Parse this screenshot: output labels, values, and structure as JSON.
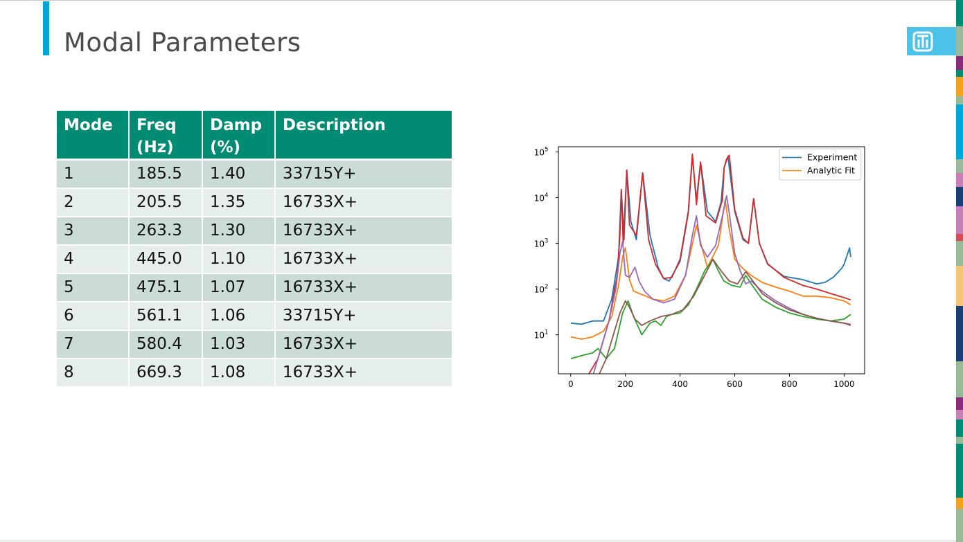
{
  "slide": {
    "title": "Modal Parameters",
    "accent_color": "#00a6d6",
    "logo_icon": "sandia-thunderbird-icon",
    "logo_color": "#4cc2ea"
  },
  "table": {
    "header_color": "#008b72",
    "headers": [
      [
        "Mode"
      ],
      [
        "Freq",
        "(Hz)"
      ],
      [
        "Damp",
        "(%)"
      ],
      [
        "Description"
      ]
    ],
    "rows": [
      [
        "1",
        "185.5",
        "1.40",
        "33715Y+"
      ],
      [
        "2",
        "205.5",
        "1.35",
        "16733X+"
      ],
      [
        "3",
        "263.3",
        "1.30",
        "16733X+"
      ],
      [
        "4",
        "445.0",
        "1.10",
        "16733X+"
      ],
      [
        "5",
        "475.1",
        "1.07",
        "16733X+"
      ],
      [
        "6",
        "561.1",
        "1.06",
        "33715Y+"
      ],
      [
        "7",
        "580.4",
        "1.03",
        "16733X+"
      ],
      [
        "8",
        "669.3",
        "1.08",
        "16733X+"
      ]
    ]
  },
  "chart_data": {
    "type": "line",
    "title": "",
    "xlabel": "",
    "ylabel": "",
    "xlim": [
      -45,
      1075
    ],
    "ylim": [
      1.4,
      130000
    ],
    "yscale": "log",
    "xticks": [
      "0",
      "200",
      "400",
      "600",
      "800",
      "1000"
    ],
    "xtick_values": [
      0,
      200,
      400,
      600,
      800,
      1000
    ],
    "ytick_values": [
      10,
      100,
      1000,
      10000,
      100000
    ],
    "yticks": [
      "10",
      "10",
      "10",
      "10",
      "10"
    ],
    "ytick_exponents": [
      "1",
      "2",
      "3",
      "4",
      "5"
    ],
    "legend_position": "top-right",
    "legend": [
      "Experiment",
      "Analytic Fit"
    ],
    "series": [
      {
        "name": "Experiment",
        "color": "#1f77b4",
        "x": [
          0,
          40,
          80,
          120,
          150,
          175,
          185,
          195,
          205,
          220,
          240,
          263,
          290,
          320,
          340,
          360,
          400,
          430,
          445,
          460,
          475,
          500,
          530,
          550,
          561,
          575,
          600,
          630,
          650,
          669,
          690,
          720,
          780,
          850,
          900,
          930,
          960,
          990,
          1000,
          1020,
          1024
        ],
        "y": [
          18,
          17,
          20,
          20,
          60,
          500,
          15000,
          1200,
          40000,
          3000,
          1200,
          35000,
          1500,
          300,
          170,
          150,
          400,
          4500,
          80000,
          9000,
          60000,
          5000,
          3000,
          8000,
          45000,
          80000,
          5000,
          1200,
          1000,
          9500,
          1000,
          350,
          190,
          160,
          130,
          140,
          180,
          280,
          350,
          800,
          500
        ]
      },
      {
        "name": "Analytic Fit",
        "color": "#ff7f0e",
        "x": [
          0,
          40,
          80,
          120,
          150,
          175,
          190,
          200,
          215,
          230,
          250,
          275,
          300,
          340,
          380,
          420,
          460,
          480,
          500,
          540,
          565,
          580,
          600,
          630,
          660,
          700,
          750,
          800,
          850,
          900,
          950,
          1000,
          1024
        ],
        "y": [
          9,
          8,
          9,
          12,
          25,
          120,
          500,
          800,
          160,
          90,
          80,
          70,
          60,
          55,
          70,
          200,
          2500,
          800,
          300,
          900,
          9000,
          2000,
          450,
          280,
          200,
          140,
          110,
          90,
          70,
          70,
          65,
          55,
          45
        ]
      },
      {
        "name": "",
        "color": "#2ca02c",
        "x": [
          0,
          40,
          80,
          100,
          130,
          160,
          190,
          210,
          230,
          260,
          290,
          310,
          330,
          350,
          370,
          400,
          430,
          460,
          490,
          520,
          540,
          560,
          590,
          620,
          640,
          660,
          700,
          750,
          800,
          850,
          900,
          950,
          1000,
          1024
        ],
        "y": [
          3,
          3.5,
          4,
          5,
          3,
          5,
          30,
          55,
          25,
          10,
          18,
          20,
          16,
          25,
          28,
          30,
          45,
          100,
          250,
          450,
          250,
          150,
          120,
          110,
          200,
          130,
          60,
          40,
          30,
          25,
          22,
          20,
          22,
          28
        ]
      },
      {
        "name": "",
        "color": "#d62728",
        "x": [
          60,
          100,
          140,
          170,
          180,
          185,
          192,
          205,
          215,
          240,
          263,
          285,
          310,
          340,
          370,
          400,
          430,
          445,
          460,
          475,
          495,
          530,
          555,
          561,
          570,
          580,
          600,
          630,
          650,
          669,
          690,
          720,
          780,
          850,
          900,
          950,
          1000,
          1024
        ],
        "y": [
          1.2,
          3,
          20,
          200,
          1500,
          15000,
          1000,
          40000,
          2500,
          1500,
          35000,
          1200,
          350,
          170,
          180,
          450,
          5000,
          90000,
          7000,
          60000,
          4000,
          2800,
          9000,
          45000,
          70000,
          85000,
          5500,
          1300,
          1000,
          9500,
          1000,
          360,
          180,
          120,
          100,
          80,
          65,
          58
        ]
      },
      {
        "name": "",
        "color": "#9467bd",
        "x": [
          80,
          110,
          140,
          165,
          180,
          190,
          200,
          215,
          235,
          250,
          270,
          300,
          340,
          380,
          420,
          445,
          460,
          475,
          500,
          530,
          555,
          570,
          580,
          600,
          620,
          640,
          660,
          700,
          750,
          800,
          850,
          900,
          950,
          1000,
          1024
        ],
        "y": [
          1.2,
          5,
          20,
          100,
          600,
          1100,
          200,
          180,
          300,
          150,
          90,
          60,
          50,
          60,
          200,
          1500,
          4000,
          900,
          500,
          900,
          4000,
          11000,
          4500,
          600,
          250,
          130,
          150,
          90,
          55,
          38,
          28,
          23,
          20,
          18,
          17
        ]
      },
      {
        "name": "",
        "color": "#8c564b",
        "x": [
          100,
          130,
          160,
          180,
          200,
          215,
          235,
          260,
          290,
          330,
          370,
          410,
          450,
          490,
          520,
          550,
          580,
          610,
          640,
          670,
          700,
          750,
          800,
          850,
          900,
          950,
          1000,
          1024
        ],
        "y": [
          1.2,
          3,
          12,
          30,
          55,
          40,
          22,
          16,
          20,
          25,
          28,
          35,
          70,
          200,
          450,
          250,
          150,
          130,
          240,
          140,
          80,
          50,
          35,
          28,
          23,
          20,
          18,
          16
        ]
      }
    ]
  }
}
